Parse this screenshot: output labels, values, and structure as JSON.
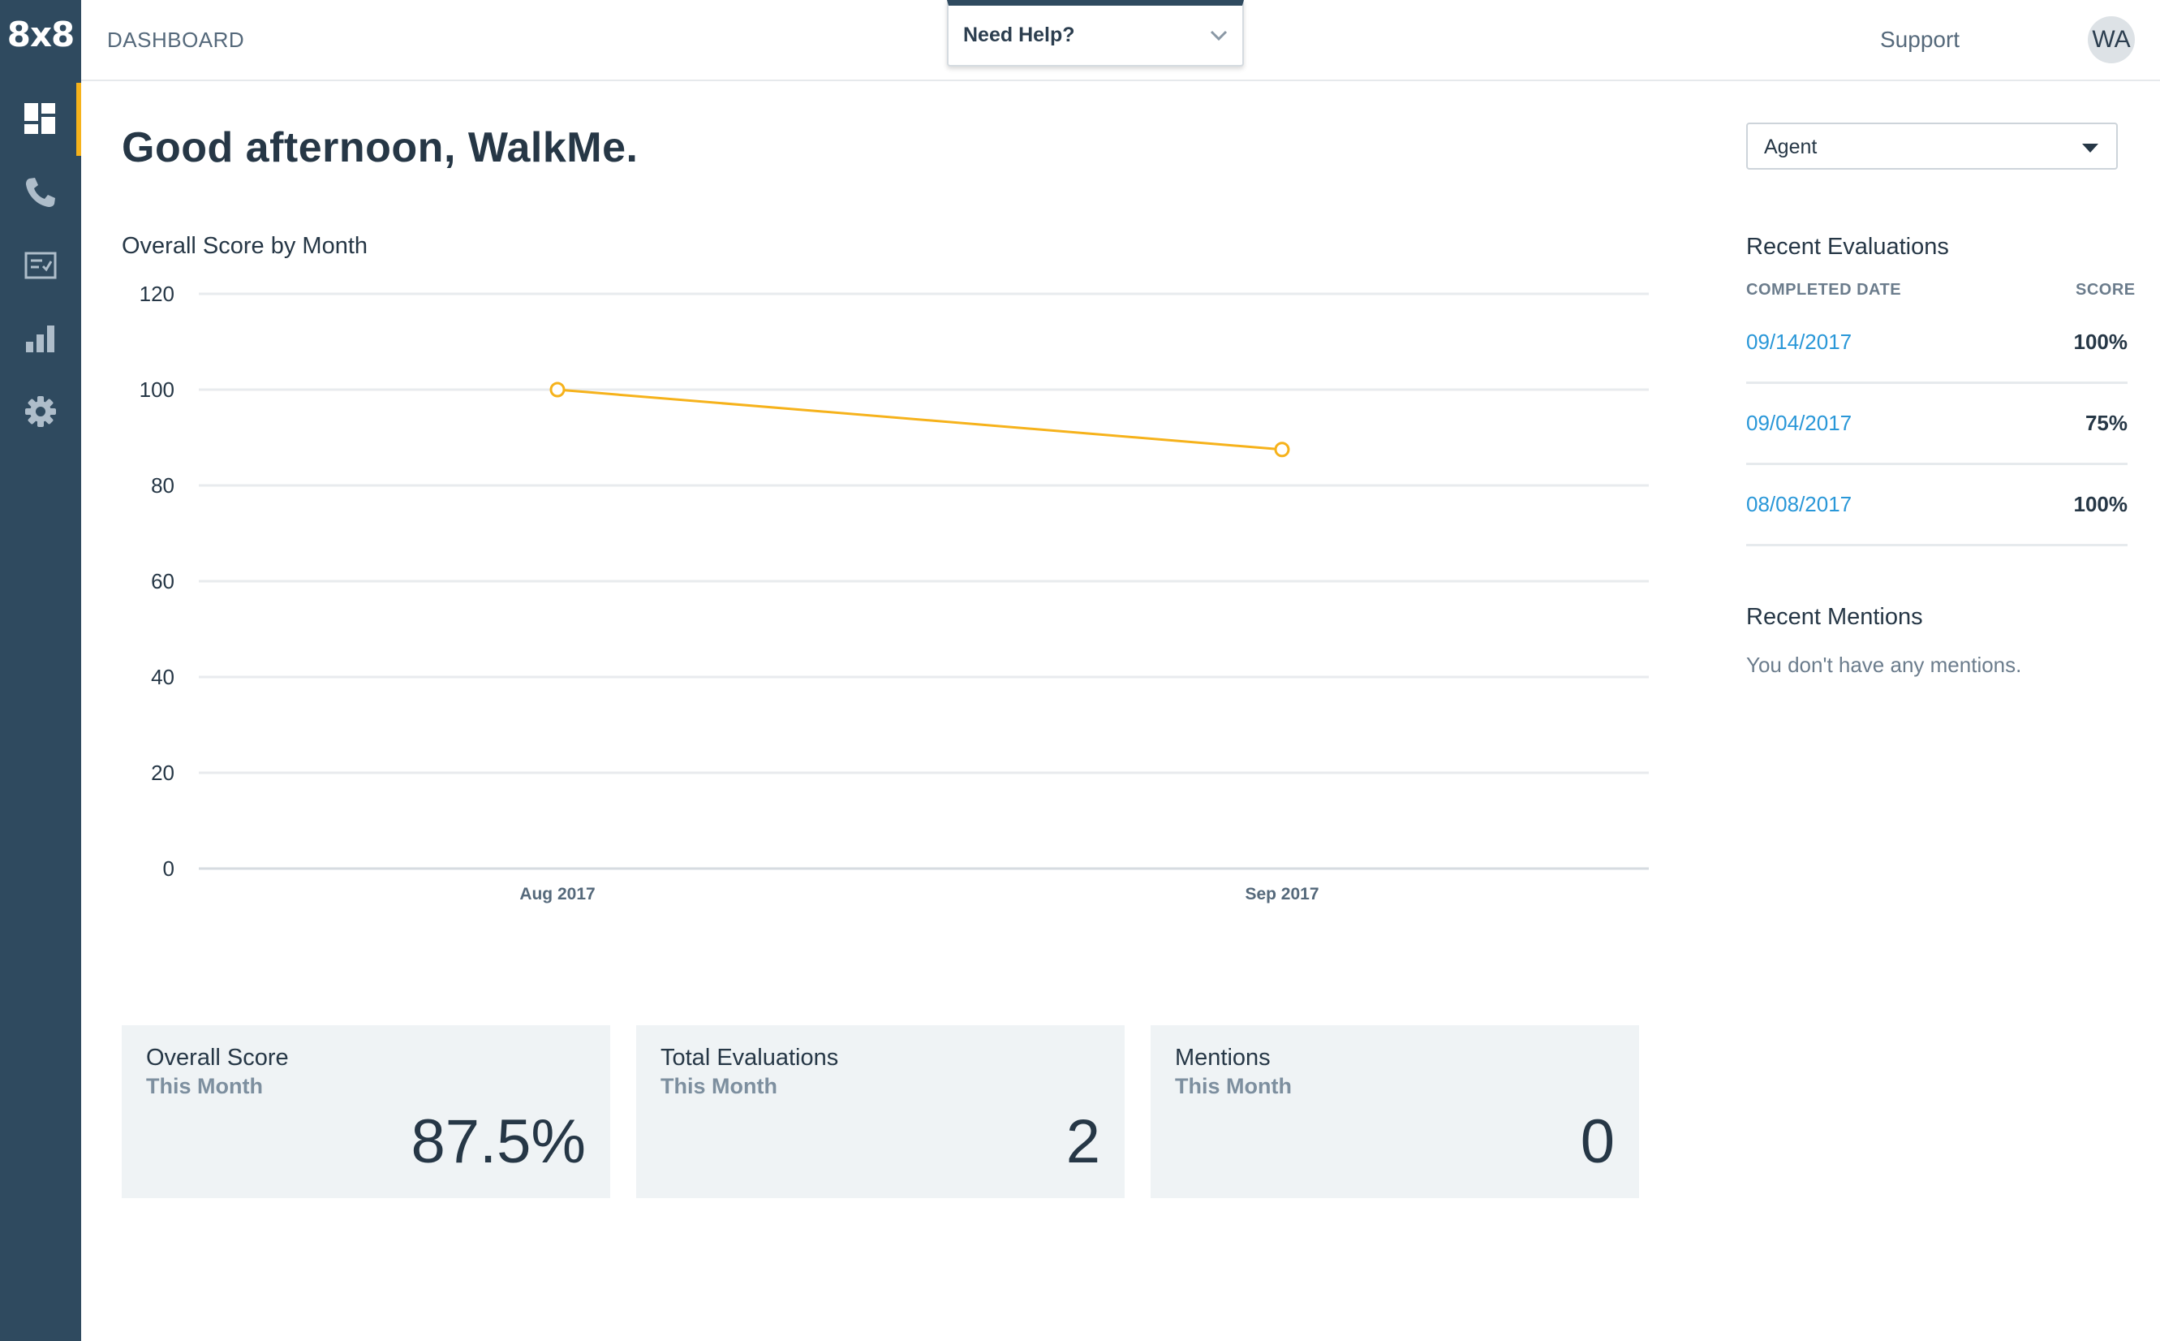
{
  "sidebar": {
    "logo": "8x8",
    "items": [
      {
        "icon": "dashboard-icon",
        "active": true
      },
      {
        "icon": "phone-icon",
        "active": false
      },
      {
        "icon": "evaluations-icon",
        "active": false
      },
      {
        "icon": "reports-icon",
        "active": false
      },
      {
        "icon": "gear-icon",
        "active": false
      }
    ]
  },
  "header": {
    "breadcrumb": "DASHBOARD",
    "help_label": "Need Help?",
    "support_label": "Support",
    "avatar_initials": "WA"
  },
  "main": {
    "greeting": "Good afternoon, WalkMe.",
    "chart_title": "Overall Score by Month"
  },
  "chart_data": {
    "type": "line",
    "title": "Overall Score by Month",
    "categories": [
      "Aug 2017",
      "Sep 2017"
    ],
    "series": [
      {
        "values": [
          100,
          87.5
        ],
        "color": "#f6b21b"
      }
    ],
    "ylim": [
      0,
      120
    ],
    "yticks": [
      0,
      20,
      40,
      60,
      80,
      100,
      120
    ],
    "grid": true,
    "xlabel": "",
    "ylabel": ""
  },
  "cards": [
    {
      "title": "Overall Score",
      "subtitle": "This Month",
      "value": "87.5%"
    },
    {
      "title": "Total Evaluations",
      "subtitle": "This Month",
      "value": "2"
    },
    {
      "title": "Mentions",
      "subtitle": "This Month",
      "value": "0"
    }
  ],
  "right_panel": {
    "role_select": {
      "value": "Agent"
    },
    "recent_evaluations": {
      "title": "Recent Evaluations",
      "col_date": "COMPLETED DATE",
      "col_score": "SCORE",
      "rows": [
        {
          "date": "09/14/2017",
          "score": "100%"
        },
        {
          "date": "09/04/2017",
          "score": "75%"
        },
        {
          "date": "08/08/2017",
          "score": "100%"
        }
      ]
    },
    "recent_mentions": {
      "title": "Recent Mentions",
      "empty_text": "You don't have any mentions."
    }
  },
  "colors": {
    "sidebar_bg": "#2f4a5f",
    "accent": "#f6b21b",
    "link": "#2997d8",
    "card_bg": "#eff3f5"
  }
}
